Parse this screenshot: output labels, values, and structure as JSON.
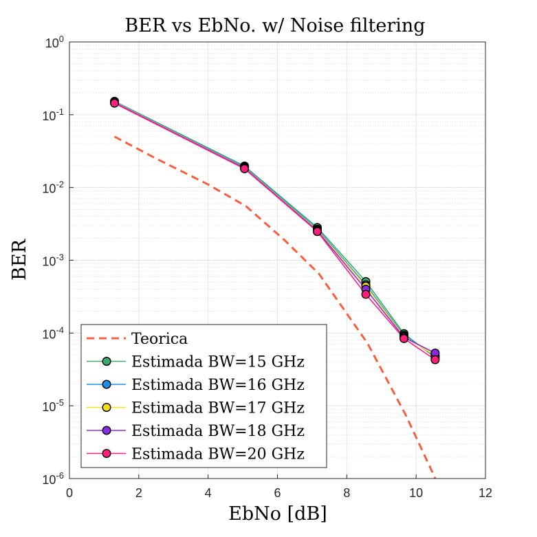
{
  "chart_data": {
    "type": "line",
    "title": "BER vs EbNo. w/ Noise filtering",
    "xlabel": "EbNo [dB]",
    "ylabel": "BER",
    "xlim": [
      0,
      12
    ],
    "ylim": [
      1e-06,
      1
    ],
    "yscale": "log",
    "grid": true,
    "minor_grid": true,
    "legend_position": "bottom-left",
    "x_ticks": [
      "0",
      "2",
      "4",
      "6",
      "8",
      "10",
      "12"
    ],
    "y_ticks": [
      {
        "base": "10",
        "exp": "0"
      },
      {
        "base": "10",
        "exp": "-1"
      },
      {
        "base": "10",
        "exp": "-2"
      },
      {
        "base": "10",
        "exp": "-3"
      },
      {
        "base": "10",
        "exp": "-4"
      },
      {
        "base": "10",
        "exp": "-5"
      },
      {
        "base": "10",
        "exp": "-6"
      }
    ],
    "series": [
      {
        "name": "Teorica",
        "style": "dashed",
        "color": "#f4603f",
        "marker": false,
        "x": [
          1.3,
          2.5,
          4.0,
          5.1,
          6.2,
          7.2,
          8.6,
          9.7,
          10.6
        ],
        "y": [
          0.05,
          0.025,
          0.011,
          0.0055,
          0.0019,
          0.00065,
          7.2e-05,
          7.5e-06,
          9e-07
        ]
      },
      {
        "name": "Estimada BW=15 GHz",
        "color": "#3caa6e",
        "marker": true,
        "x": [
          1.3,
          5.05,
          7.15,
          8.55,
          9.65,
          10.55
        ],
        "y": [
          0.153,
          0.0197,
          0.00282,
          0.00051,
          9.8e-05,
          4.6e-05
        ]
      },
      {
        "name": "Estimada BW=16 GHz",
        "color": "#1f8fe6",
        "marker": true,
        "x": [
          1.3,
          5.05,
          7.15,
          8.55,
          9.65,
          10.55
        ],
        "y": [
          0.15,
          0.0192,
          0.00268,
          0.00046,
          9.3e-05,
          4.8e-05
        ]
      },
      {
        "name": "Estimada BW=17 GHz",
        "color": "#f7e01a",
        "marker": true,
        "x": [
          1.3,
          5.05,
          7.15,
          8.55,
          9.65,
          10.55
        ],
        "y": [
          0.148,
          0.0188,
          0.0026,
          0.00044,
          9e-05,
          4.9e-05
        ]
      },
      {
        "name": "Estimada BW=18 GHz",
        "color": "#8a2be2",
        "marker": true,
        "x": [
          1.3,
          5.05,
          7.15,
          8.55,
          9.65,
          10.55
        ],
        "y": [
          0.146,
          0.0185,
          0.00254,
          0.0004,
          8.7e-05,
          5.3e-05
        ]
      },
      {
        "name": "Estimada BW=20 GHz",
        "color": "#ff1f7d",
        "marker": true,
        "x": [
          1.3,
          5.05,
          7.15,
          8.55,
          9.65,
          10.55
        ],
        "y": [
          0.144,
          0.0181,
          0.00248,
          0.00034,
          8.4e-05,
          4.3e-05
        ]
      }
    ]
  }
}
